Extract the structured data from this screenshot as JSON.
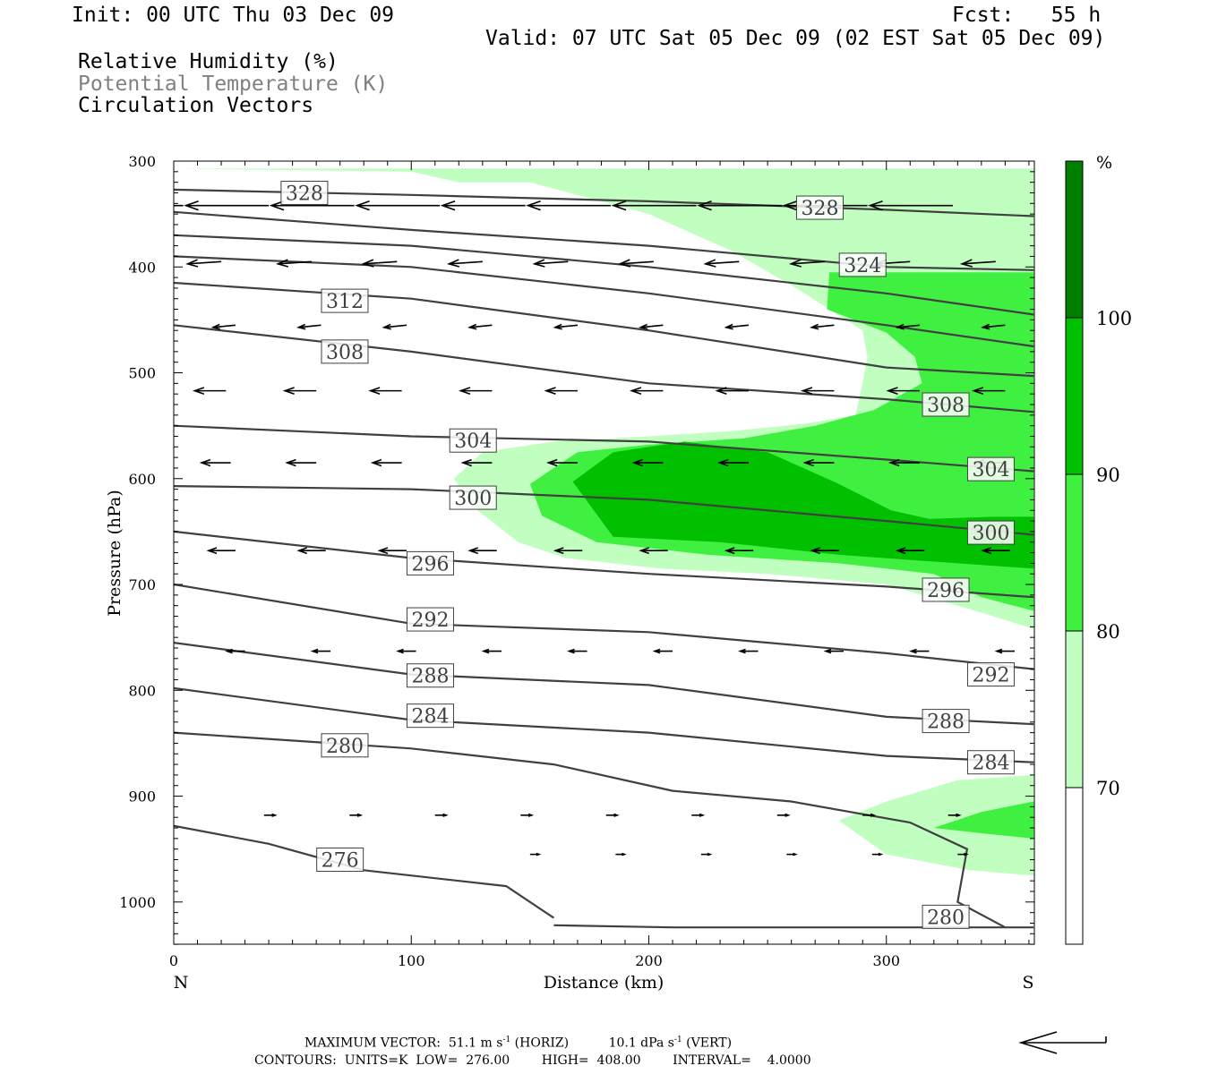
{
  "header": {
    "init": "Init: 00 UTC Thu 03 Dec 09",
    "fcst": "Fcst:   55 h",
    "valid": "Valid: 07 UTC Sat 05 Dec 09 (02 EST Sat 05 Dec 09)",
    "fields": [
      {
        "label": "Relative Humidity (%)",
        "color": "#000000"
      },
      {
        "label": "Potential Temperature (K)",
        "color": "#808080"
      },
      {
        "label": "Circulation Vectors",
        "color": "#000000"
      }
    ]
  },
  "footer": {
    "max_vector_prefix": "MAXIMUM VECTOR:  51.1 m s",
    "max_vector_mid": " (HORIZ)          10.1 dPa s",
    "max_vector_suffix": " (VERT)",
    "exponent": "-1",
    "contours": "CONTOURS:  UNITS=K  LOW=  276.00        HIGH=  408.00        INTERVAL=    4.0000"
  },
  "chart_data": {
    "type": "cross-section",
    "xlabel": "Distance (km)",
    "ylabel": "Pressure (hPa)",
    "xlim": [
      0,
      362
    ],
    "ylim": [
      300,
      1040
    ],
    "x_ticks": [
      0,
      100,
      200,
      300
    ],
    "y_ticks": [
      300,
      400,
      500,
      600,
      700,
      800,
      900,
      1000
    ],
    "x_end_labels": {
      "left": "N",
      "right": "S"
    },
    "colorbar": {
      "title": "%",
      "levels": [
        70,
        80,
        90,
        100
      ],
      "colors": [
        "#ffffff",
        "#c0ffc0",
        "#40f040",
        "#00c000",
        "#008000"
      ]
    },
    "rh_shading": [
      {
        "level": 70,
        "color": "#c0ffc0",
        "points": [
          [
            0,
            307
          ],
          [
            362,
            307
          ],
          [
            362,
            405
          ],
          [
            276,
            405
          ],
          [
            258,
            380
          ],
          [
            220,
            340
          ],
          [
            180,
            325
          ],
          [
            150,
            320
          ],
          [
            120,
            320
          ],
          [
            100,
            310
          ]
        ]
      },
      {
        "level": 70,
        "color": "#c0ffc0",
        "points": [
          [
            150,
            320
          ],
          [
            200,
            350
          ],
          [
            235,
            385
          ],
          [
            262,
            420
          ],
          [
            290,
            460
          ],
          [
            292,
            485
          ],
          [
            290,
            510
          ],
          [
            287,
            540
          ],
          [
            266,
            548
          ],
          [
            235,
            555
          ],
          [
            200,
            560
          ],
          [
            160,
            565
          ],
          [
            130,
            575
          ],
          [
            118,
            600
          ],
          [
            125,
            625
          ],
          [
            145,
            660
          ],
          [
            165,
            675
          ],
          [
            205,
            685
          ],
          [
            250,
            690
          ],
          [
            300,
            700
          ],
          [
            345,
            730
          ],
          [
            362,
            742
          ],
          [
            362,
            315
          ]
        ]
      },
      {
        "level": 70,
        "color": "#c0ffc0",
        "points": [
          [
            280,
            923
          ],
          [
            300,
            905
          ],
          [
            330,
            885
          ],
          [
            362,
            880
          ],
          [
            362,
            975
          ],
          [
            335,
            970
          ],
          [
            300,
            955
          ]
        ]
      },
      {
        "level": 80,
        "color": "#40f040",
        "points": [
          [
            362,
            405
          ],
          [
            276,
            405
          ],
          [
            275,
            440
          ],
          [
            300,
            462
          ],
          [
            312,
            485
          ],
          [
            315,
            510
          ],
          [
            295,
            535
          ],
          [
            270,
            550
          ],
          [
            240,
            562
          ],
          [
            200,
            568
          ],
          [
            170,
            575
          ],
          [
            150,
            605
          ],
          [
            155,
            635
          ],
          [
            178,
            660
          ],
          [
            225,
            672
          ],
          [
            280,
            680
          ],
          [
            320,
            690
          ],
          [
            340,
            712
          ],
          [
            362,
            725
          ]
        ]
      },
      {
        "level": 80,
        "color": "#40f040",
        "points": [
          [
            320,
            930
          ],
          [
            340,
            915
          ],
          [
            362,
            905
          ],
          [
            362,
            940
          ],
          [
            340,
            935
          ]
        ]
      },
      {
        "level": 90,
        "color": "#00c000",
        "points": [
          [
            168,
            603
          ],
          [
            185,
            575
          ],
          [
            215,
            565
          ],
          [
            250,
            575
          ],
          [
            280,
            605
          ],
          [
            302,
            630
          ],
          [
            318,
            638
          ],
          [
            345,
            636
          ],
          [
            362,
            636
          ],
          [
            362,
            685
          ],
          [
            330,
            680
          ],
          [
            280,
            672
          ],
          [
            230,
            660
          ],
          [
            185,
            655
          ]
        ]
      }
    ],
    "theta_contours": [
      {
        "level": 328,
        "points": [
          [
            0,
            327
          ],
          [
            100,
            332
          ],
          [
            200,
            338
          ],
          [
            300,
            346
          ],
          [
            362,
            352
          ]
        ]
      },
      {
        "level": 324,
        "points": [
          [
            0,
            348
          ],
          [
            100,
            365
          ],
          [
            200,
            380
          ],
          [
            300,
            400
          ],
          [
            362,
            403
          ]
        ]
      },
      {
        "level": 320,
        "points": [
          [
            0,
            370
          ],
          [
            100,
            380
          ],
          [
            200,
            400
          ],
          [
            300,
            425
          ],
          [
            362,
            445
          ]
        ]
      },
      {
        "level": 316,
        "points": [
          [
            0,
            390
          ],
          [
            100,
            400
          ],
          [
            200,
            425
          ],
          [
            300,
            455
          ],
          [
            362,
            475
          ]
        ]
      },
      {
        "level": 312,
        "points": [
          [
            0,
            415
          ],
          [
            100,
            430
          ],
          [
            200,
            460
          ],
          [
            300,
            495
          ],
          [
            362,
            503
          ]
        ]
      },
      {
        "level": 308,
        "points": [
          [
            0,
            455
          ],
          [
            100,
            480
          ],
          [
            200,
            510
          ],
          [
            300,
            525
          ],
          [
            362,
            537
          ]
        ]
      },
      {
        "level": 304,
        "points": [
          [
            0,
            550
          ],
          [
            100,
            560
          ],
          [
            200,
            565
          ],
          [
            300,
            582
          ],
          [
            362,
            593
          ]
        ]
      },
      {
        "level": 300,
        "points": [
          [
            0,
            607
          ],
          [
            100,
            610
          ],
          [
            200,
            620
          ],
          [
            300,
            640
          ],
          [
            362,
            653
          ]
        ]
      },
      {
        "level": 296,
        "points": [
          [
            0,
            650
          ],
          [
            100,
            675
          ],
          [
            200,
            690
          ],
          [
            300,
            702
          ],
          [
            362,
            712
          ]
        ]
      },
      {
        "level": 292,
        "points": [
          [
            0,
            700
          ],
          [
            100,
            737
          ],
          [
            200,
            745
          ],
          [
            300,
            765
          ],
          [
            362,
            780
          ]
        ]
      },
      {
        "level": 288,
        "points": [
          [
            0,
            755
          ],
          [
            100,
            785
          ],
          [
            200,
            795
          ],
          [
            300,
            825
          ],
          [
            362,
            832
          ]
        ]
      },
      {
        "level": 284,
        "points": [
          [
            0,
            798
          ],
          [
            100,
            828
          ],
          [
            200,
            840
          ],
          [
            300,
            862
          ],
          [
            362,
            868
          ]
        ]
      },
      {
        "level": 280,
        "points": [
          [
            0,
            840
          ],
          [
            100,
            855
          ],
          [
            160,
            870
          ],
          [
            210,
            895
          ],
          [
            260,
            905
          ],
          [
            310,
            925
          ],
          [
            334,
            950
          ],
          [
            330,
            1000
          ],
          [
            350,
            1024
          ]
        ]
      },
      {
        "level": 280,
        "points": [
          [
            160,
            1022
          ],
          [
            210,
            1024
          ],
          [
            300,
            1024
          ],
          [
            362,
            1024
          ]
        ]
      },
      {
        "level": 276,
        "points": [
          [
            0,
            928
          ],
          [
            40,
            945
          ],
          [
            80,
            970
          ],
          [
            140,
            985
          ],
          [
            160,
            1015
          ]
        ]
      }
    ],
    "contour_labels": [
      {
        "text": "328",
        "x": 55,
        "p": 330
      },
      {
        "text": "328",
        "x": 272,
        "p": 344
      },
      {
        "text": "324",
        "x": 290,
        "p": 398
      },
      {
        "text": "312",
        "x": 72,
        "p": 432
      },
      {
        "text": "308",
        "x": 72,
        "p": 480
      },
      {
        "text": "308",
        "x": 325,
        "p": 530
      },
      {
        "text": "304",
        "x": 126,
        "p": 564
      },
      {
        "text": "304",
        "x": 344,
        "p": 591
      },
      {
        "text": "300",
        "x": 126,
        "p": 618
      },
      {
        "text": "300",
        "x": 344,
        "p": 651
      },
      {
        "text": "296",
        "x": 108,
        "p": 680
      },
      {
        "text": "296",
        "x": 325,
        "p": 705
      },
      {
        "text": "292",
        "x": 108,
        "p": 733
      },
      {
        "text": "292",
        "x": 344,
        "p": 785
      },
      {
        "text": "288",
        "x": 108,
        "p": 786
      },
      {
        "text": "288",
        "x": 325,
        "p": 829
      },
      {
        "text": "284",
        "x": 108,
        "p": 824
      },
      {
        "text": "284",
        "x": 344,
        "p": 868
      },
      {
        "text": "280",
        "x": 72,
        "p": 852
      },
      {
        "text": "276",
        "x": 70,
        "p": 960
      },
      {
        "text": "280",
        "x": 325,
        "p": 1014
      }
    ],
    "vector_rows": [
      {
        "p": 342,
        "xs": [
          4,
          40,
          76,
          112,
          148,
          184,
          220,
          256,
          292,
          328
        ],
        "u": -37,
        "w": 0
      },
      {
        "p": 395,
        "xs": [
          20,
          58,
          94,
          130,
          166,
          202,
          238,
          274,
          310,
          346
        ],
        "u": -15,
        "w": -1
      },
      {
        "p": 455,
        "xs": [
          26,
          62,
          98,
          134,
          170,
          206,
          242,
          278,
          314,
          350
        ],
        "u": -10,
        "w": -1
      },
      {
        "p": 517,
        "xs": [
          22,
          60,
          96,
          134,
          170,
          206,
          242,
          278,
          314,
          350
        ],
        "u": -14,
        "w": 0
      },
      {
        "p": 585,
        "xs": [
          24,
          60,
          96,
          134,
          170,
          206,
          242,
          278,
          314,
          350
        ],
        "u": -13,
        "w": 0
      },
      {
        "p": 668,
        "xs": [
          26,
          64,
          98,
          136,
          172,
          208,
          244,
          280,
          316,
          352
        ],
        "u": -12,
        "w": 0
      },
      {
        "p": 763,
        "xs": [
          30,
          66,
          102,
          138,
          174,
          210,
          246,
          282,
          318,
          354
        ],
        "u": -8,
        "w": 0
      },
      {
        "p": 918,
        "xs": [
          38,
          74,
          110,
          146,
          182,
          218,
          254,
          290,
          326
        ],
        "u": 5,
        "w": 0
      },
      {
        "p": 955,
        "xs": [
          150,
          186,
          222,
          258,
          294,
          330
        ],
        "u": 4,
        "w": 0
      }
    ],
    "reference_arrow": "horizontal 51.1 m/s"
  }
}
